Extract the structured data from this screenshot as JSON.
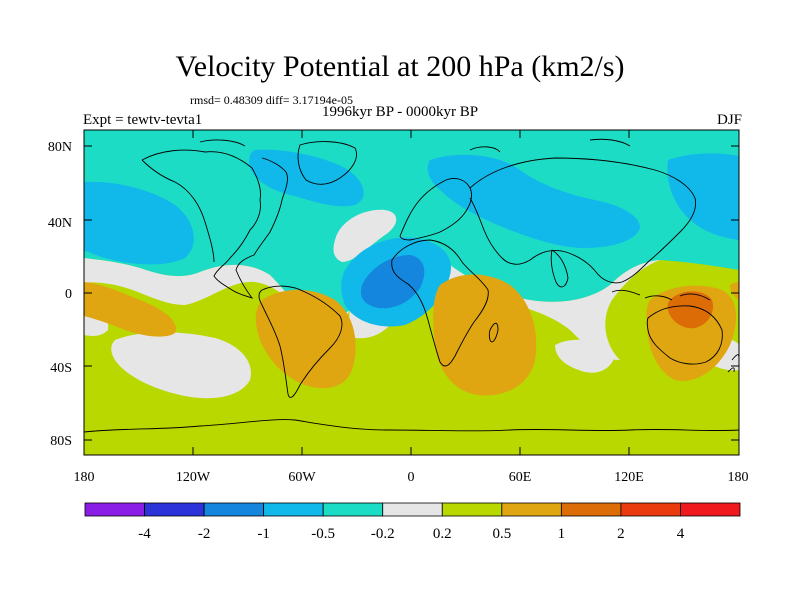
{
  "title": "Velocity Potential at 200 hPa (km2/s)",
  "stats": "rmsd= 0.48309 diff= 3.17194e-05",
  "left_string": "Expt = tewtv-tevta1",
  "center_string": "1996kyr BP - 0000kyr BP",
  "right_string": "DJF",
  "lat_labels": [
    "80N",
    "40N",
    "0",
    "40S",
    "80S"
  ],
  "lon_labels": [
    "180",
    "120W",
    "60W",
    "0",
    "60E",
    "120E",
    "180"
  ],
  "colors": {
    "c_lt_m4": "#8a1ee6",
    "c_m4_m2": "#2b33d9",
    "c_m2_m1": "#1486dd",
    "c_m1_m05": "#11b9ea",
    "c_m05_m02": "#1ddcc5",
    "c_m02_02": "#e6e6e6",
    "c_02_05": "#b9d800",
    "c_05_1": "#dfa612",
    "c_1_2": "#dc6c05",
    "c_2_4": "#ea3b0f",
    "c_gt_4": "#f0191e"
  },
  "colorbar": {
    "labels": [
      "-4",
      "-2",
      "-1",
      "-0.5",
      "-0.2",
      "0.2",
      "0.5",
      "1",
      "2",
      "4"
    ],
    "colors": [
      "#8a1ee6",
      "#2b33d9",
      "#1486dd",
      "#11b9ea",
      "#1ddcc5",
      "#e6e6e6",
      "#b9d800",
      "#dfa612",
      "#dc6c05",
      "#ea3b0f",
      "#f0191e"
    ]
  }
}
